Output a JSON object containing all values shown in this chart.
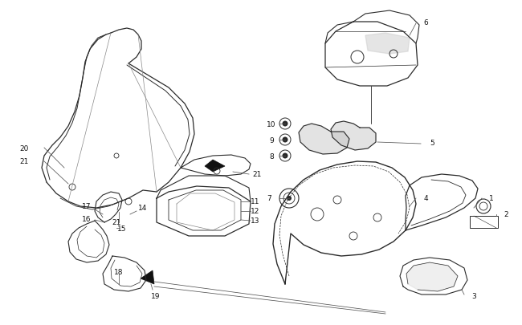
{
  "bg_color": "#ffffff",
  "line_color": "#2a2a2a",
  "label_color": "#111111",
  "font_size": 6.5,
  "fig_width": 6.5,
  "fig_height": 4.06,
  "dpi": 100
}
